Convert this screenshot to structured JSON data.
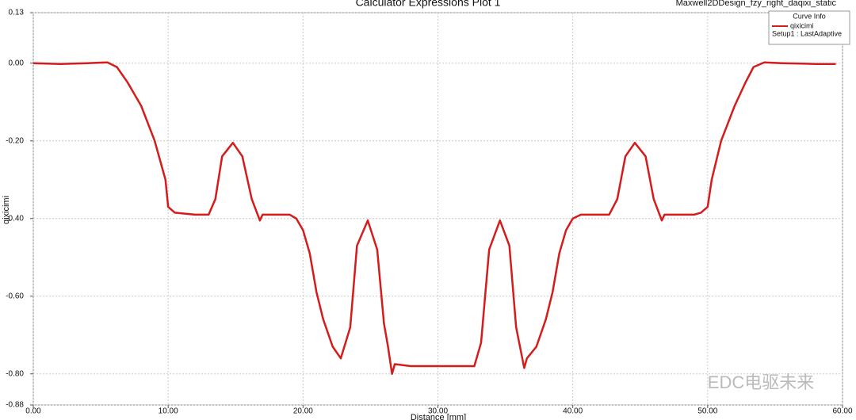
{
  "chart_data": {
    "type": "line",
    "title": "Calculator Expressions Plot 1",
    "design_name": "Maxwell2DDesign_fzy_right_daqixi_static",
    "legend_title": "Curve Info",
    "setup_label": "Setup1 : LastAdaptive",
    "x_label": "Distance [mm]",
    "y_label": "qixicimi",
    "watermark": "EDC电驱未来",
    "grid": true,
    "legend_position": "upper right",
    "xlim": [
      0,
      60
    ],
    "ylim": [
      -0.88,
      0.13
    ],
    "xticks": [
      {
        "value": 0,
        "label": "0.00"
      },
      {
        "value": 10,
        "label": "10.00"
      },
      {
        "value": 20,
        "label": "20.00"
      },
      {
        "value": 30,
        "label": "30.00"
      },
      {
        "value": 40,
        "label": "40.00"
      },
      {
        "value": 50,
        "label": "50.00"
      },
      {
        "value": 60,
        "label": "60.00"
      }
    ],
    "yticks": [
      {
        "value": 0.13,
        "label": "0.13"
      },
      {
        "value": 0,
        "label": "0.00"
      },
      {
        "value": -0.2,
        "label": "-0.20"
      },
      {
        "value": -0.4,
        "label": "-0.40"
      },
      {
        "value": -0.6,
        "label": "-0.60"
      },
      {
        "value": -0.8,
        "label": "-0.80"
      },
      {
        "value": -0.88,
        "label": "-0.88"
      }
    ],
    "x": [
      0,
      2,
      4,
      5.5,
      6.2,
      7,
      8,
      9,
      9.8,
      10,
      10.5,
      12,
      13,
      13.5,
      14,
      14.8,
      15.5,
      16.2,
      16.8,
      17,
      19,
      19.5,
      20,
      20.5,
      21,
      21.5,
      22.2,
      22.8,
      23.5,
      24,
      24.8,
      25.5,
      26,
      26.3,
      26.6,
      26.8,
      28,
      30,
      32,
      32.7,
      33.2,
      33.8,
      34.6,
      35.3,
      35.8,
      36.4,
      36.6,
      37.3,
      38,
      38.5,
      39,
      39.5,
      40,
      40.6,
      42.7,
      43.3,
      43.9,
      44.6,
      45.4,
      46,
      46.6,
      46.8,
      49,
      49.5,
      50,
      50.3,
      51,
      52,
      52.8,
      53.4,
      54.2,
      55.5,
      58,
      59.5
    ],
    "series": [
      {
        "name": "qixicimi",
        "color": "#d41c1c",
        "values": [
          0,
          -0.002,
          0,
          0.002,
          -0.01,
          -0.05,
          -0.11,
          -0.2,
          -0.3,
          -0.37,
          -0.385,
          -0.39,
          -0.39,
          -0.35,
          -0.24,
          -0.205,
          -0.24,
          -0.35,
          -0.405,
          -0.39,
          -0.39,
          -0.4,
          -0.43,
          -0.49,
          -0.59,
          -0.66,
          -0.73,
          -0.76,
          -0.68,
          -0.47,
          -0.405,
          -0.48,
          -0.67,
          -0.73,
          -0.8,
          -0.775,
          -0.78,
          -0.78,
          -0.78,
          -0.78,
          -0.72,
          -0.48,
          -0.405,
          -0.47,
          -0.68,
          -0.785,
          -0.76,
          -0.73,
          -0.66,
          -0.59,
          -0.49,
          -0.43,
          -0.4,
          -0.39,
          -0.39,
          -0.35,
          -0.24,
          -0.205,
          -0.24,
          -0.35,
          -0.405,
          -0.39,
          -0.39,
          -0.385,
          -0.37,
          -0.3,
          -0.2,
          -0.11,
          -0.05,
          -0.01,
          0.002,
          0,
          -0.002,
          -0.002
        ]
      }
    ]
  }
}
